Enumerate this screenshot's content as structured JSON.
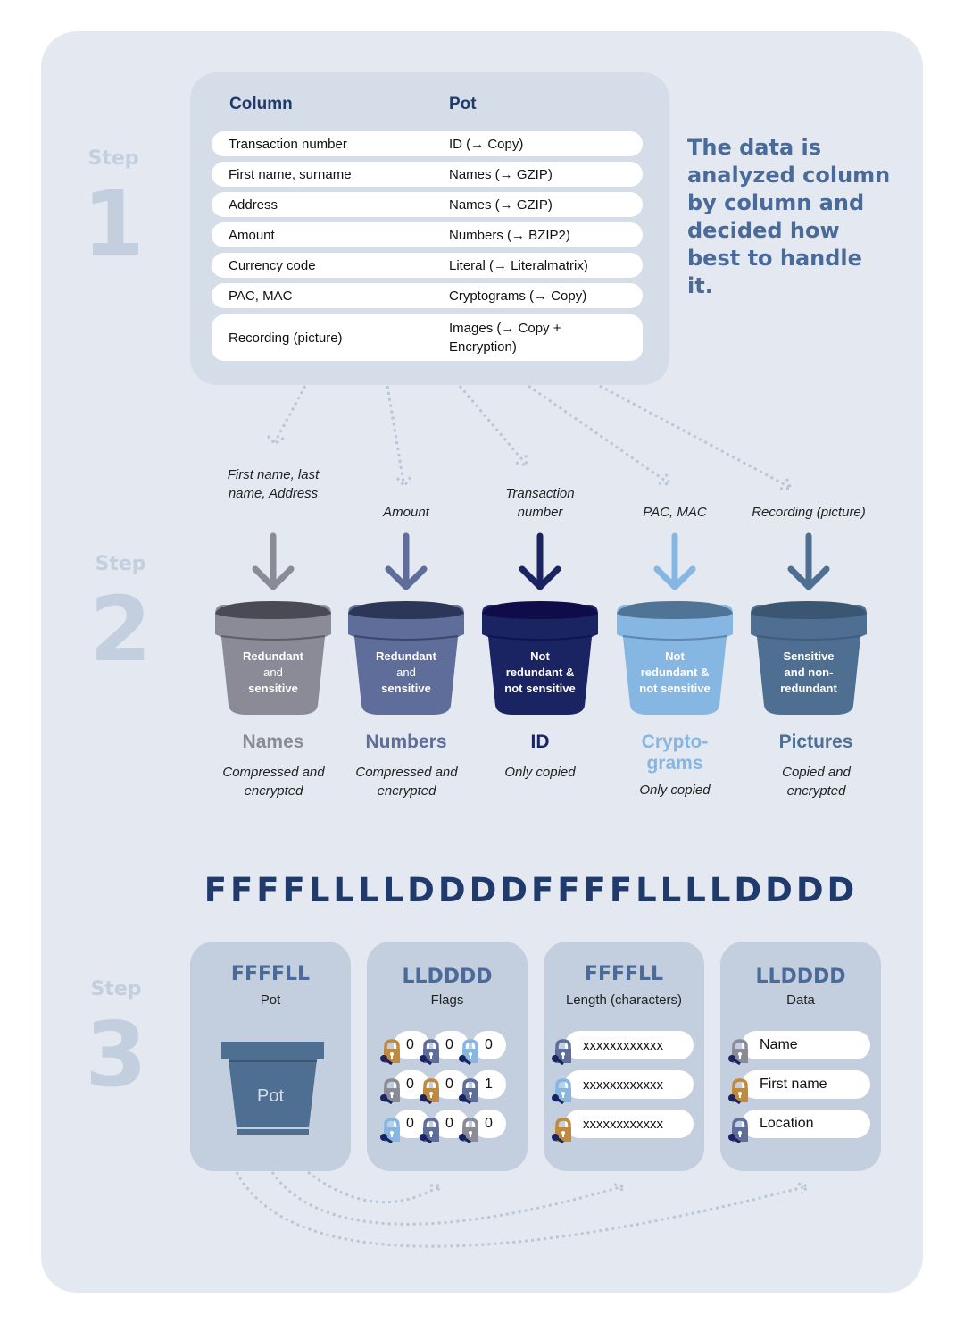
{
  "steps": [
    {
      "word": "Step",
      "number": "1"
    },
    {
      "word": "Step",
      "number": "2"
    },
    {
      "word": "Step",
      "number": "3"
    }
  ],
  "table": {
    "headers": {
      "column": "Column",
      "pot": "Pot"
    },
    "rows": [
      {
        "column": "Transaction number",
        "pot": "ID (→ Copy)"
      },
      {
        "column": "First name, surname",
        "pot": "Names (→ GZIP)"
      },
      {
        "column": "Address",
        "pot": "Names (→ GZIP)"
      },
      {
        "column": "Amount",
        "pot": "Numbers (→ BZIP2)"
      },
      {
        "column": "Currency code",
        "pot": "Literal (→ Literalmatrix)"
      },
      {
        "column": "PAC, MAC",
        "pot": "Cryptograms (→ Copy)"
      },
      {
        "column": "Recording (picture)",
        "pot": "Images (→ Copy + Encryption)"
      }
    ]
  },
  "headline": "The data is analyzed column by column and decided how best to handle it.",
  "buckets": [
    {
      "source": "First name, last name, Address",
      "label_lines": [
        "Redundant",
        "and",
        "sensitive"
      ],
      "name": "Names",
      "desc": "Compressed and encrypted",
      "color": "#8a8b96",
      "rim": "#4a4a55",
      "arrow": "#8a8b96",
      "name_color": "#8a8b96"
    },
    {
      "source": "Amount",
      "label_lines": [
        "Redundant",
        "and",
        "sensitive"
      ],
      "name": "Numbers",
      "desc": "Compressed and encrypted",
      "color": "#5f6d9b",
      "rim": "#2c3656",
      "arrow": "#5f6d9b",
      "name_color": "#5f6d9b"
    },
    {
      "source": "Transaction number",
      "label_lines": [
        "Not",
        "redundant &",
        "not sensitive"
      ],
      "name": "ID",
      "desc": "Only copied",
      "color": "#1b2462",
      "rim": "#0e0d4a",
      "arrow": "#1b2462",
      "name_color": "#1b2462"
    },
    {
      "source": "PAC, MAC",
      "label_lines": [
        "Not",
        "redundant &",
        "not sensitive"
      ],
      "name": "Crypto-grams",
      "desc": "Only copied",
      "color": "#86b6e2",
      "rim": "#4f7496",
      "arrow": "#86b6e2",
      "name_color": "#86b6e2"
    },
    {
      "source": "Recording (picture)",
      "label_lines": [
        "Sensitive",
        "and non-",
        "redundant"
      ],
      "name": "Pictures",
      "desc": "Copied and encrypted",
      "color": "#4e6f92",
      "rim": "#3a5670",
      "arrow": "#4e6f92",
      "name_color": "#4e6f92"
    }
  ],
  "sequence": "FFFFLLLLDDDDFFFFLLLLDDDD",
  "cards": [
    {
      "code": "FFFFLL",
      "title": "Pot",
      "pot_label": "Pot"
    },
    {
      "code": "LLDDDD",
      "title": "Flags",
      "flags": [
        [
          "0",
          "0",
          "0"
        ],
        [
          "0",
          "0",
          "1"
        ],
        [
          "0",
          "0",
          "0"
        ]
      ],
      "flag_locks": [
        [
          "#c08a3e",
          "#5f6d9b",
          "#86b6e2"
        ],
        [
          "#8a8b96",
          "#c08a3e",
          "#5f6d9b"
        ],
        [
          "#86b6e2",
          "#5f6d9b",
          "#8a8b96"
        ]
      ]
    },
    {
      "code": "FFFFLL",
      "title": "Length (characters)",
      "values": [
        "xxxxxxxxxxxx",
        "xxxxxxxxxxxx",
        "xxxxxxxxxxxx"
      ],
      "locks": [
        "#5f6d9b",
        "#86b6e2",
        "#c08a3e"
      ]
    },
    {
      "code": "LLDDDD",
      "title": "Data",
      "values": [
        "Name",
        "First name",
        "Location"
      ],
      "locks": [
        "#8a8b96",
        "#c08a3e",
        "#5f6d9b"
      ]
    }
  ],
  "colors": {
    "background": "#e4e9f1",
    "navy": "#1f3a6b",
    "headline": "#4a6a9a",
    "key": "#1b2462"
  }
}
